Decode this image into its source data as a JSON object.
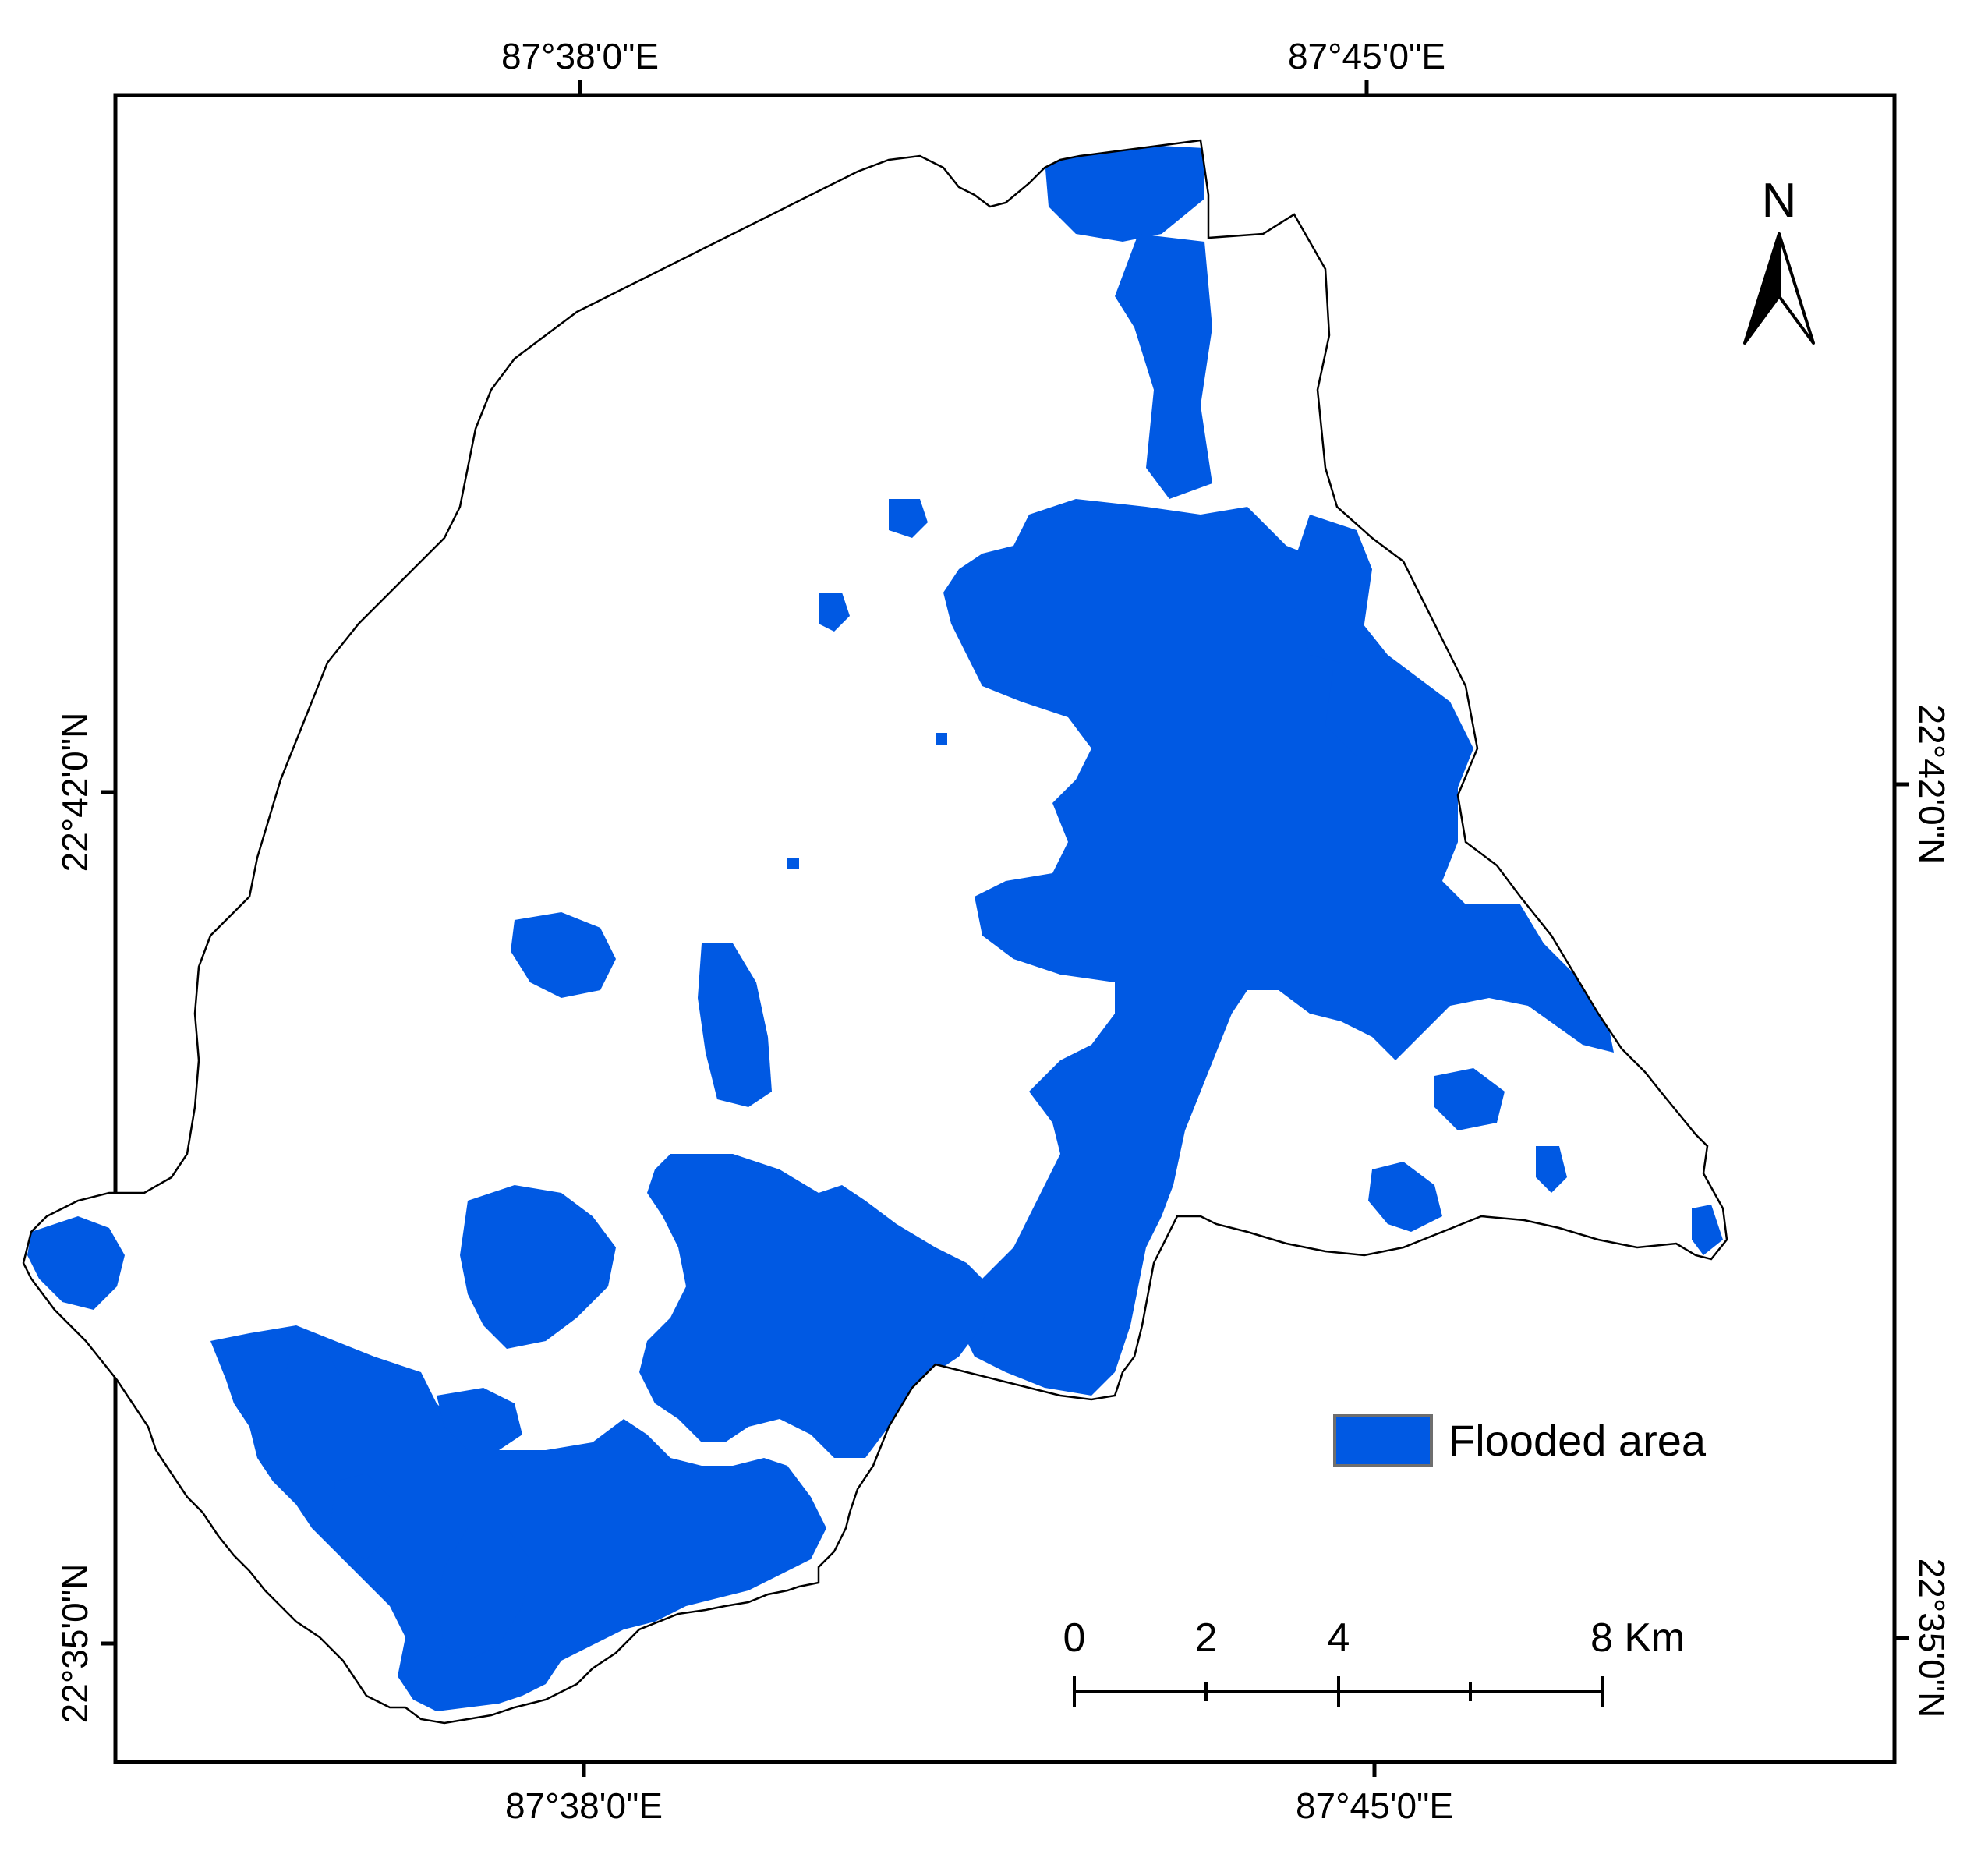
{
  "colors": {
    "flooded": "#0059E3",
    "frame": "#000000",
    "background": "#FFFFFF",
    "legend_border": "#6E6E6E"
  },
  "graticule": {
    "top_ticks": [
      "87°38'0\"E",
      "87°45'0\"E"
    ],
    "bottom_ticks": [
      "87°38'0\"E",
      "87°45'0\"E"
    ],
    "left_ticks": [
      "22°42'0\"N",
      "22°35'0\"N"
    ],
    "right_ticks": [
      "22°42'0\"N",
      "22°35'0\"N"
    ]
  },
  "north_arrow": {
    "label": "N",
    "icon": "north-arrow-icon"
  },
  "scale_bar": {
    "labels": [
      "0",
      "2",
      "4",
      "8 Km"
    ]
  },
  "legend": {
    "label": "Flooded area"
  }
}
